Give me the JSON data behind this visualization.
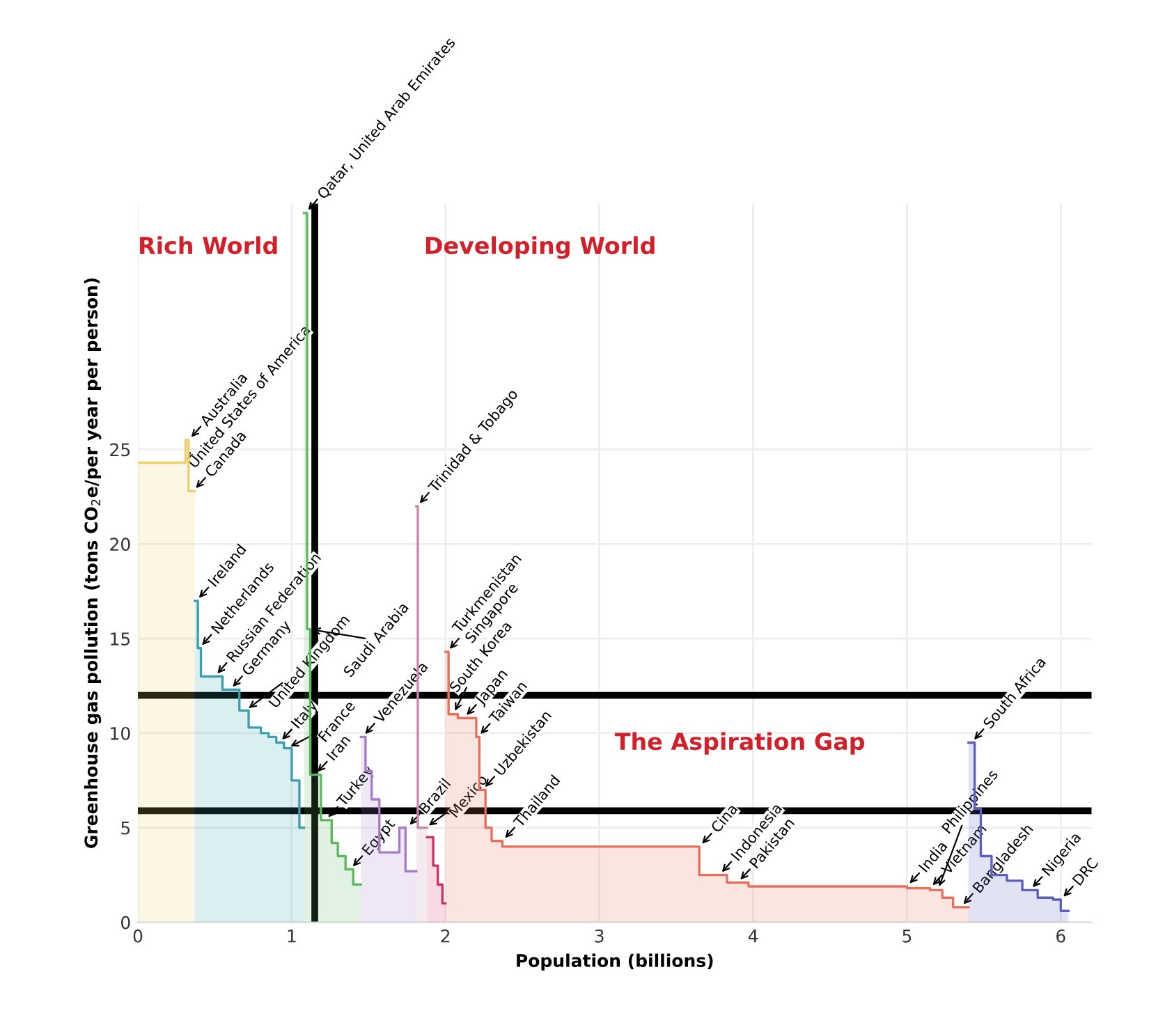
{
  "chart_data": {
    "type": "area",
    "xlabel": "Population (billions)",
    "ylabel": "Greenhouse gas pollution (tons CO$_{2}$e/per year per person)",
    "xlim": [
      0,
      6.2
    ],
    "ylim": [
      0,
      38
    ],
    "xticks": [
      0,
      1,
      2,
      3,
      4,
      5,
      6
    ],
    "yticks": [
      0,
      5,
      10,
      15,
      20,
      25
    ],
    "grid": true,
    "series": [
      {
        "color": "#f0cf6a",
        "x": [
          0,
          0.31,
          0.31,
          0.33,
          0.33,
          0.37
        ],
        "values": [
          24.3,
          24.3,
          25.5,
          25.5,
          22.8,
          22.8
        ]
      },
      {
        "color": "#3a9fae",
        "x": [
          0.37,
          0.39,
          0.39,
          0.41,
          0.41,
          0.55,
          0.55,
          0.66,
          0.66,
          0.72,
          0.72,
          0.8,
          0.8,
          0.85,
          0.85,
          0.9,
          0.9,
          0.95,
          0.95,
          1.0,
          1.0,
          1.05,
          1.05,
          1.08
        ],
        "values": [
          17,
          17,
          14.5,
          14.5,
          13,
          13,
          12.3,
          12.3,
          11.2,
          11.2,
          10.3,
          10.3,
          10,
          10,
          9.8,
          9.8,
          9.5,
          9.5,
          9.2,
          9.2,
          7.5,
          7.5,
          5,
          5
        ]
      },
      {
        "color": "#5cb85c",
        "x": [
          1.08,
          1.1,
          1.1,
          1.12,
          1.12,
          1.19,
          1.19,
          1.26,
          1.26,
          1.3,
          1.3,
          1.35,
          1.35,
          1.4,
          1.4,
          1.45
        ],
        "values": [
          37.5,
          37.5,
          15.5,
          15.5,
          7.8,
          7.8,
          5.4,
          5.4,
          4.2,
          4.2,
          3.5,
          3.5,
          2.8,
          2.8,
          2,
          2
        ]
      },
      {
        "color": "#a67cc7",
        "x": [
          1.45,
          1.48,
          1.48,
          1.52,
          1.52,
          1.57,
          1.57,
          1.7,
          1.7,
          1.74,
          1.74,
          1.81
        ],
        "values": [
          9.8,
          9.8,
          8,
          8,
          6.5,
          6.5,
          3.7,
          3.7,
          5,
          5,
          2.7,
          2.7
        ]
      },
      {
        "color": "#c88aa8",
        "x": [
          1.81,
          1.82,
          1.82,
          1.88
        ],
        "values": [
          22,
          22,
          5,
          5
        ]
      },
      {
        "color": "#d03060",
        "x": [
          1.88,
          1.92,
          1.92,
          1.95,
          1.95,
          1.98,
          1.98,
          2.0
        ],
        "values": [
          4.5,
          4.5,
          3,
          3,
          2,
          2,
          1,
          1
        ]
      },
      {
        "color": "#e8705a",
        "x": [
          2.0,
          2.02,
          2.02,
          2.08,
          2.08,
          2.2,
          2.2,
          2.22,
          2.22,
          2.26,
          2.26,
          2.3,
          2.3,
          2.37,
          2.37,
          3.65,
          3.65,
          3.83,
          3.83,
          3.97,
          3.97,
          5.0,
          5.0,
          5.15,
          5.15,
          5.23,
          5.23,
          5.3,
          5.3,
          5.4
        ],
        "values": [
          14.3,
          14.3,
          11,
          11,
          10.8,
          10.8,
          9.8,
          9.8,
          7,
          7,
          5,
          5,
          4.3,
          4.3,
          4,
          4,
          2.5,
          2.5,
          2.1,
          2.1,
          1.9,
          1.9,
          1.8,
          1.8,
          1.7,
          1.7,
          1.3,
          1.3,
          0.8,
          0.8
        ]
      },
      {
        "color": "#5a5fc0",
        "x": [
          5.4,
          5.44,
          5.44,
          5.48,
          5.48,
          5.55,
          5.55,
          5.65,
          5.65,
          5.75,
          5.75,
          5.85,
          5.85,
          5.95,
          5.95,
          6.0,
          6.0,
          6.05
        ],
        "values": [
          9.5,
          9.5,
          6,
          6,
          3.5,
          3.5,
          2.5,
          2.5,
          2.2,
          2.2,
          1.7,
          1.7,
          1.3,
          1.3,
          1.2,
          1.2,
          0.6,
          0.6
        ]
      }
    ],
    "ref_lines": [
      {
        "axis": "x",
        "value": 1.15,
        "color": "#000000"
      },
      {
        "axis": "y",
        "value": 12,
        "color": "#000000"
      },
      {
        "axis": "y",
        "value": 5.9,
        "color": "#000000"
      }
    ],
    "annotations": [
      "Rich World",
      "Developing World",
      "The Aspiration Gap",
      {
        "text": "Australia",
        "x": 0.33,
        "y": 25.5
      },
      {
        "text": "United States of America",
        "x": 0.3,
        "y": 24.3
      },
      {
        "text": "Canada",
        "x": 0.36,
        "y": 22.8
      },
      {
        "text": "Ireland",
        "x": 0.38,
        "y": 17.0
      },
      {
        "text": "Netherlands",
        "x": 0.4,
        "y": 14.5
      },
      {
        "text": "Russian Federation",
        "x": 0.5,
        "y": 13.0
      },
      {
        "text": "Germany",
        "x": 0.6,
        "y": 12.3
      },
      {
        "text": "United Kingdom",
        "x": 0.7,
        "y": 11.2
      },
      {
        "text": "Italy",
        "x": 0.92,
        "y": 9.5
      },
      {
        "text": "France",
        "x": 0.97,
        "y": 9.2
      },
      {
        "text": "Qatar, United Arab Emirates",
        "x": 1.09,
        "y": 37.5
      },
      {
        "text": "Saudi Arabia",
        "x": 1.11,
        "y": 15.5
      },
      {
        "text": "Iran",
        "x": 1.15,
        "y": 7.8
      },
      {
        "text": "Turkey",
        "x": 1.22,
        "y": 5.4
      },
      {
        "text": "Egypt",
        "x": 1.38,
        "y": 2.8
      },
      {
        "text": "Venezuela",
        "x": 1.46,
        "y": 9.8
      },
      {
        "text": "Trinidad & Tobago",
        "x": 1.815,
        "y": 22.0
      },
      {
        "text": "Brazil",
        "x": 1.75,
        "y": 5.0
      },
      {
        "text": "Mexico",
        "x": 1.87,
        "y": 5.0
      },
      {
        "text": "Turkmenistan\nSingapore",
        "x": 2.01,
        "y": 14.3
      },
      {
        "text": "South Korea",
        "x": 2.05,
        "y": 11.0
      },
      {
        "text": "Japan",
        "x": 2.12,
        "y": 10.8
      },
      {
        "text": "Taiwan",
        "x": 2.21,
        "y": 9.8
      },
      {
        "text": "Uzbekistan",
        "x": 2.24,
        "y": 7.0
      },
      {
        "text": "Thailand",
        "x": 2.37,
        "y": 4.3
      },
      {
        "text": "Cina",
        "x": 3.65,
        "y": 4.0
      },
      {
        "text": "Indonesia",
        "x": 3.78,
        "y": 2.5
      },
      {
        "text": "Pakistan",
        "x": 3.9,
        "y": 2.1
      },
      {
        "text": "India",
        "x": 5.0,
        "y": 1.9
      },
      {
        "text": "Vietnam",
        "x": 5.15,
        "y": 1.8
      },
      {
        "text": "Philippines",
        "x": 5.2,
        "y": 1.7
      },
      {
        "text": "Bangladesh",
        "x": 5.35,
        "y": 0.8
      },
      {
        "text": "South Africa",
        "x": 5.42,
        "y": 9.5
      },
      {
        "text": "Nigeria",
        "x": 5.8,
        "y": 1.7
      },
      {
        "text": "DRC",
        "x": 6.0,
        "y": 1.2
      }
    ]
  }
}
